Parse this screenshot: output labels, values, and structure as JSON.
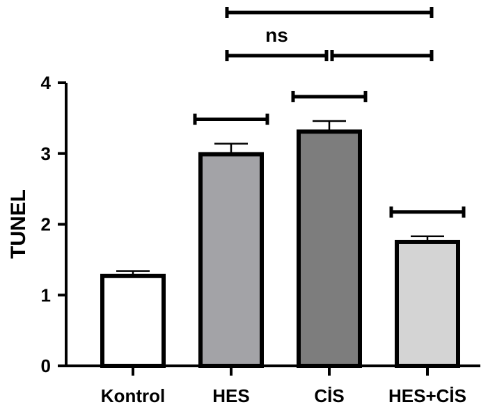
{
  "chart_data": {
    "type": "bar",
    "ylabel": "TUNEL",
    "ylim": [
      0,
      4
    ],
    "yticks": [
      0,
      1,
      2,
      3,
      4
    ],
    "categories": [
      "Kontrol",
      "HES",
      "CİS",
      "HES+CİS"
    ],
    "values": [
      1.27,
      2.99,
      3.31,
      1.75
    ],
    "errors": [
      0.07,
      0.15,
      0.15,
      0.08
    ],
    "colors": [
      "#ffffff",
      "#a3a3a7",
      "#7d7d7d",
      "#d4d4d4"
    ],
    "significance": [
      {
        "from": 1,
        "to": 3,
        "level": "top",
        "label": ""
      },
      {
        "from": 1,
        "to": 2,
        "level": "middle",
        "label": "ns"
      },
      {
        "from": 2,
        "to": 3,
        "level": "middle",
        "label": ""
      },
      {
        "over": 1,
        "label": ""
      },
      {
        "over": 2,
        "label": ""
      },
      {
        "over": 3,
        "label": ""
      }
    ]
  }
}
